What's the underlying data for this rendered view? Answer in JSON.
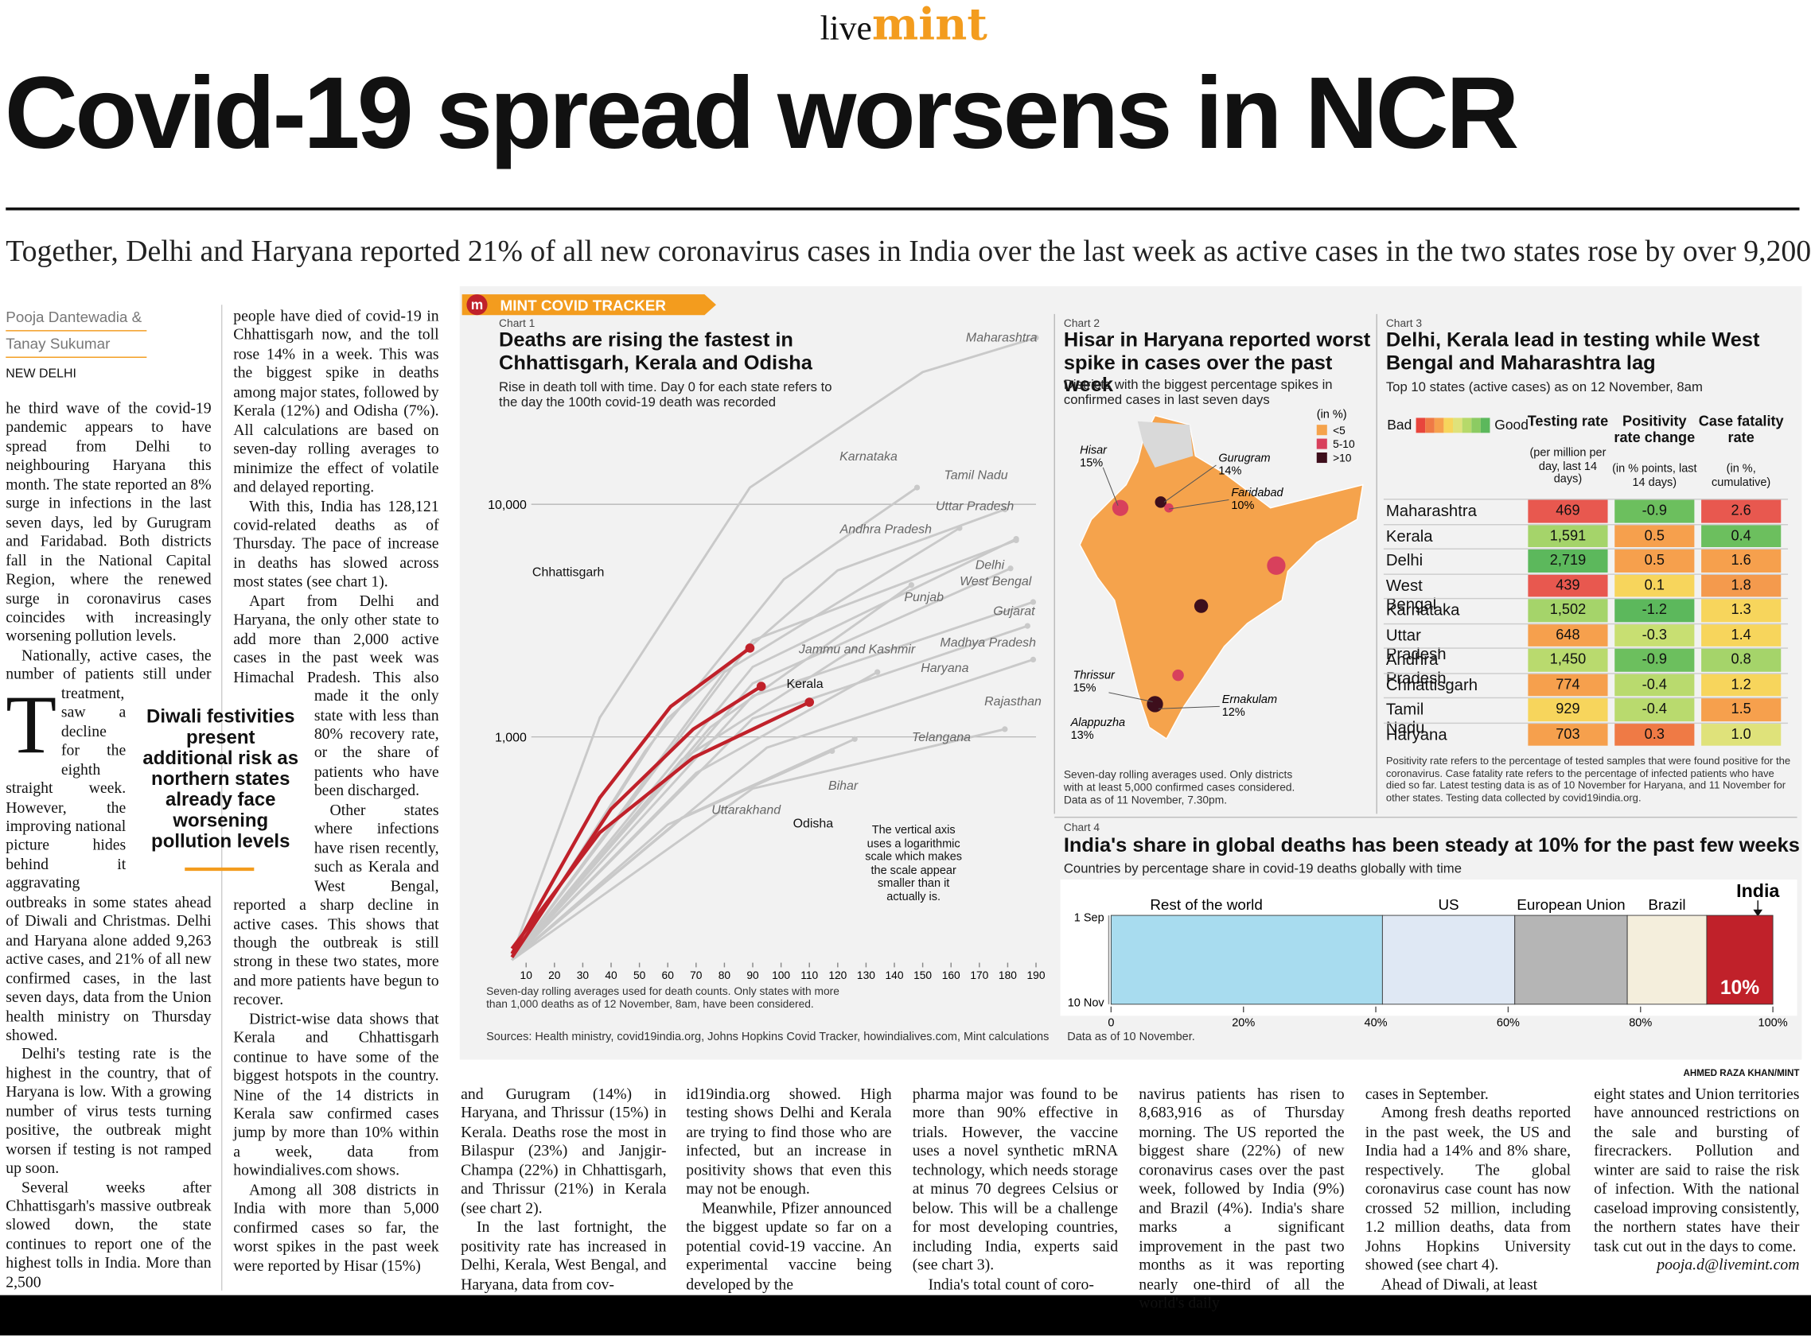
{
  "header": {
    "logo_live": "live",
    "logo_mint": "mint",
    "headline": "Covid-19 spread worsens in NCR",
    "standfirst": "Together, Delhi and Haryana reported 21% of all new coronavirus cases in India over the last week as active cases in the two states rose by over 9,200"
  },
  "byline": {
    "authors": [
      "Pooja Dantewadia &",
      "Tanay Sukumar"
    ],
    "dateline": "NEW DELHI"
  },
  "pull_quote": "Diwali festivities present additional risk as northern states already face worsening pollution levels",
  "article": {
    "drop_cap": "T",
    "columns": [
      [
        "he third wave of the covid-19 pandemic appears to have spread from Delhi to neighbouring Haryana this month. The state reported an 8% surge in infections in the last seven days, led by Gurugram and Faridabad. Both districts fall in the National Capital Region, where the renewed surge in coronavirus cases coincides with increasingly worsening pollution levels.",
        "Nationally, active cases, the number of patients still under treatment, saw a decline for the eighth straight week. However, the improving national picture hides behind it aggravating outbreaks in some states ahead of Diwali and Christmas. Delhi and Haryana alone added 9,263 active cases, and 21% of all new confirmed cases, in the last seven days, data from the Union health ministry on Thursday showed.",
        "Delhi's testing rate is the highest in the country, that of Haryana is low. With a growing number of virus tests turning positive, the outbreak might worsen if testing is not ramped up soon.",
        "Several weeks after Chhattisgarh's massive outbreak slowed down, the state continues to report one of the highest tolls in India. More than 2,500"
      ],
      [
        "people have died of covid-19 in Chhattisgarh now, and the toll rose 14% in a week. This was the biggest spike in deaths among major states, followed by Kerala (12%) and Odisha (7%). All calculations are based on seven-day rolling averages to minimize the effect of volatile and delayed reporting.",
        "With this, India has 128,121 covid-related deaths as of Thursday. The pace of increase in deaths has slowed across most states (see chart 1).",
        "Apart from Delhi and Haryana, the only other state to add more than 2,000 active cases in the past week was Himachal Pradesh. This also made it the only state with less than 80% recovery rate, or the share of patients who have been discharged.",
        "Other states where infections have risen recently, such as Kerala and West Bengal, reported a sharp decline in active cases. This shows that though the outbreak is still strong in these two states, more and more patients have begun to recover.",
        "District-wise data shows that Kerala and Chhattisgarh continue to have some of the biggest hotspots in the country. Nine of the 14 districts in Kerala saw confirmed cases jump by more than 10% within a week, data from howindialives.com shows.",
        "Among all 308 districts in India with more than 5,000 confirmed cases so far, the worst spikes in the past week were reported by Hisar (15%)"
      ],
      [
        "and Gurugram (14%) in Haryana, and Thrissur (15%) in Kerala. Deaths rose the most in Bilaspur (23%) and Janjgir-Champa (22%) in Chhattisgarh, and Thrissur (21%) in Kerala (see chart 2).",
        "In the last fortnight, the positivity rate has increased in Delhi, Kerala, West Bengal, and Haryana, data from cov-"
      ],
      [
        "id19india.org showed. High testing shows Delhi and Kerala are trying to find those who are infected, but an increase in positivity shows that even this may not be enough.",
        "Meanwhile, Pfizer announced the biggest update so far on a potential covid-19 vaccine. An experimental vaccine being developed by the"
      ],
      [
        "pharma major was found to be more than 90% effective in trials. However, the vaccine uses a novel synthetic mRNA technology, which needs storage at minus 70 degrees Celsius or below. This will be a challenge for most developing countries, including India, experts said (see chart 3).",
        "India's total count of coro-"
      ],
      [
        "navirus patients has risen to 8,683,916 as of Thursday morning. The US reported the biggest share (22%) of new coronavirus cases over the past week, followed by India (9%) and Brazil (4%). India's share marks a significant improvement in the past two months as it was reporting nearly one-third of all the world's daily"
      ],
      [
        "cases in September.",
        "Among fresh deaths reported in the past week, the US and India had a 14% and 8% share, respectively. The global coronavirus case count has now crossed 52 million, including 1.2 million deaths, data from Johns Hopkins University showed (see chart 4).",
        "Ahead of Diwali, at least"
      ],
      [
        "eight states and Union territories have announced restrictions on the sale and bursting of firecrackers. Pollution and winter are said to raise the risk of infection. With the national caseload improving consistently, the northern states have their task cut out in the days to come."
      ]
    ],
    "email": "pooja.d@livemint.com"
  },
  "tracker": {
    "icon": "m",
    "label": "MINT COVID TRACKER",
    "credit": "AHMED RAZA KHAN/MINT",
    "sources": "Sources: Health ministry, covid19india.org, Johns Hopkins Covid Tracker, howindialives.com, Mint calculations"
  },
  "chart1": {
    "kicker": "Chart 1",
    "type": "line",
    "title": "Deaths are rising the fastest in Chhattisgarh, Kerala and Odisha",
    "subtitle": "Rise in death toll with time. Day 0 for each state refers to the day the 100th covid-19 death was recorded",
    "xlim": [
      0,
      190
    ],
    "xticks": [
      10,
      20,
      30,
      40,
      50,
      60,
      70,
      80,
      90,
      100,
      110,
      120,
      130,
      140,
      150,
      160,
      170,
      180,
      190
    ],
    "ylim": [
      100,
      60000
    ],
    "log_scale": true,
    "yticks": [
      {
        "value": 1000,
        "label": "1,000"
      },
      {
        "value": 10000,
        "label": "10,000"
      }
    ],
    "grid": true,
    "note": "The vertical axis uses a logarithmic scale which makes the scale appear smaller than it actually is.",
    "footnote": "Seven-day rolling averages used for death counts. Only states with more than 1,000 deaths as of 12 November, 8am, have been considered.",
    "series": [
      {
        "name": "Maharashtra",
        "color": "#c9c9c9",
        "x": [
          5,
          36,
          89,
          150,
          190
        ],
        "values": [
          115,
          1210,
          11800,
          37000,
          52000
        ]
      },
      {
        "name": "Karnataka",
        "color": "#c9c9c9",
        "x": [
          5,
          52,
          101,
          148
        ],
        "values": [
          110,
          870,
          4760,
          11800
        ]
      },
      {
        "name": "Tamil Nadu",
        "color": "#c9c9c9",
        "x": [
          5,
          60,
          120,
          179
        ],
        "values": [
          110,
          1200,
          5200,
          9500
        ]
      },
      {
        "name": "Uttar Pradesh",
        "color": "#c9c9c9",
        "x": [
          5,
          90,
          183
        ],
        "values": [
          110,
          2000,
          7100
        ]
      },
      {
        "name": "Andhra Pradesh",
        "color": "#c9c9c9",
        "x": [
          5,
          80,
          163
        ],
        "values": [
          110,
          1900,
          7900
        ]
      },
      {
        "name": "Delhi",
        "color": "#c9c9c9",
        "x": [
          5,
          90,
          183
        ],
        "values": [
          110,
          2600,
          7000
        ]
      },
      {
        "name": "West Bengal",
        "color": "#c9c9c9",
        "x": [
          5,
          90,
          181
        ],
        "values": [
          110,
          1700,
          5300
        ]
      },
      {
        "name": "Punjab",
        "color": "#c9c9c9",
        "x": [
          5,
          75,
          146
        ],
        "values": [
          110,
          1100,
          4500
        ]
      },
      {
        "name": "Gujarat",
        "color": "#c9c9c9",
        "x": [
          5,
          90,
          189
        ],
        "values": [
          110,
          1500,
          3800
        ]
      },
      {
        "name": "Madhya Pradesh",
        "color": "#c9c9c9",
        "x": [
          5,
          90,
          187
        ],
        "values": [
          110,
          1200,
          3000
        ]
      },
      {
        "name": "Haryana",
        "color": "#c9c9c9",
        "x": [
          5,
          70,
          134
        ],
        "values": [
          110,
          700,
          1900
        ]
      },
      {
        "name": "Jammu and Kashmir",
        "color": "#c9c9c9",
        "x": [
          5,
          65,
          126
        ],
        "values": [
          110,
          800,
          2400
        ]
      },
      {
        "name": "Rajasthan",
        "color": "#c9c9c9",
        "x": [
          5,
          95,
          189
        ],
        "values": [
          110,
          900,
          2150
        ]
      },
      {
        "name": "Telangana",
        "color": "#c9c9c9",
        "x": [
          5,
          90,
          179
        ],
        "values": [
          110,
          600,
          1080
        ]
      },
      {
        "name": "Bihar",
        "color": "#c9c9c9",
        "x": [
          5,
          65,
          126
        ],
        "values": [
          110,
          450,
          980
        ]
      },
      {
        "name": "Uttarakhand",
        "color": "#c9c9c9",
        "x": [
          5,
          60,
          118
        ],
        "values": [
          110,
          420,
          870
        ]
      },
      {
        "name": "Chhattisgarh",
        "color": "#c0212a",
        "x": [
          5,
          36,
          61,
          89
        ],
        "values": [
          117,
          548,
          1350,
          2410
        ]
      },
      {
        "name": "Kerala",
        "color": "#c0212a",
        "x": [
          5,
          40,
          69,
          93
        ],
        "values": [
          113,
          490,
          1080,
          1650
        ]
      },
      {
        "name": "Odisha",
        "color": "#c0212a",
        "x": [
          5,
          36,
          69,
          110
        ],
        "values": [
          123,
          388,
          815,
          1410
        ]
      }
    ]
  },
  "chart2": {
    "kicker": "Chart 2",
    "title": "Hisar in Haryana reported worst spike in cases over the past week",
    "subtitle": "Districts with the biggest percentage spikes in confirmed cases in last seven days",
    "legend": {
      "title": "(in %)",
      "items": [
        {
          "label": "<5",
          "color": "#f5a34c"
        },
        {
          "label": "5-10",
          "color": "#d8405c"
        },
        {
          "label": ">10",
          "color": "#3e0f1c"
        }
      ]
    },
    "districts": [
      {
        "name": "Hisar",
        "label": "15%"
      },
      {
        "name": "Gurugram",
        "label": "14%"
      },
      {
        "name": "Faridabad",
        "label": "10%"
      },
      {
        "name": "Thrissur",
        "label": "15%"
      },
      {
        "name": "Alappuzha",
        "label": "13%"
      },
      {
        "name": "Ernakulam",
        "label": "12%"
      }
    ],
    "note": "Seven-day rolling averages used. Only districts with at least 5,000 confirmed cases considered. Data as of 11 November, 7.30pm."
  },
  "chart3": {
    "kicker": "Chart 3",
    "title": "Delhi, Kerala lead in testing while West Bengal and Maharashtra lag",
    "subtitle": "Top 10 states (active cases) as on 12 November, 8am",
    "scale": {
      "bad": "Bad",
      "good": "Good",
      "colors": [
        "#e8453c",
        "#ef7a45",
        "#f6a04d",
        "#f7d55c",
        "#dfe27a",
        "#b6d96a",
        "#8ccb62",
        "#5cb85c"
      ]
    },
    "columns": [
      {
        "title": "Testing rate",
        "unit": "(per million per day, last 14 days)"
      },
      {
        "title": "Positivity rate change",
        "unit": "(in % points, last 14 days)"
      },
      {
        "title": "Case fatality rate",
        "unit": "(in %, cumulative)"
      }
    ],
    "rows": [
      {
        "state": "Maharashtra",
        "cells": [
          "469",
          "-0.9",
          "2.6"
        ],
        "colors": [
          "#e8584f",
          "#6cbf5e",
          "#e8584f"
        ]
      },
      {
        "state": "Kerala",
        "cells": [
          "1,591",
          "0.5",
          "0.4"
        ],
        "colors": [
          "#a5d46a",
          "#f6a04d",
          "#6cbf5e"
        ]
      },
      {
        "state": "Delhi",
        "cells": [
          "2,719",
          "0.5",
          "1.6"
        ],
        "colors": [
          "#5cb85c",
          "#f6a04d",
          "#f6a04d"
        ]
      },
      {
        "state": "West Bengal",
        "cells": [
          "439",
          "0.1",
          "1.8"
        ],
        "colors": [
          "#e8584f",
          "#f7d55c",
          "#f49a4d"
        ]
      },
      {
        "state": "Karnataka",
        "cells": [
          "1,502",
          "-1.2",
          "1.3"
        ],
        "colors": [
          "#a5d46a",
          "#5cb85c",
          "#f7d55c"
        ]
      },
      {
        "state": "Uttar Pradesh",
        "cells": [
          "648",
          "-0.3",
          "1.4"
        ],
        "colors": [
          "#f6a04d",
          "#c8df72",
          "#f7d55c"
        ]
      },
      {
        "state": "Andhra Pradesh",
        "cells": [
          "1,450",
          "-0.9",
          "0.8"
        ],
        "colors": [
          "#b9da6e",
          "#6cbf5e",
          "#a5d46a"
        ]
      },
      {
        "state": "Chhattisgarh",
        "cells": [
          "774",
          "-0.4",
          "1.2"
        ],
        "colors": [
          "#f6a04d",
          "#b9da6e",
          "#f7d55c"
        ]
      },
      {
        "state": "Tamil Nadu",
        "cells": [
          "929",
          "-0.4",
          "1.5"
        ],
        "colors": [
          "#f7d55c",
          "#b9da6e",
          "#f6a04d"
        ]
      },
      {
        "state": "Haryana",
        "cells": [
          "703",
          "0.3",
          "1.0"
        ],
        "colors": [
          "#f6a04d",
          "#ef7a45",
          "#dfe27a"
        ]
      }
    ],
    "note": "Positivity rate refers to the percentage of tested samples that were found positive for the coronavirus. Case fatality rate refers to the percentage of infected patients who have died so far. Latest testing data is as of 10 November for Haryana, and 11 November for other states. Testing data collected by covid19india.org."
  },
  "chart4": {
    "kicker": "Chart 4",
    "type": "stacked-bar",
    "title": "India's share in global deaths has been steady at 10% for the past few weeks",
    "subtitle": "Countries by percentage share in covid-19 deaths globally with time",
    "dates": [
      "1 Sep",
      "10 Nov"
    ],
    "xlim": [
      0,
      100
    ],
    "xticks": [
      0,
      {
        "value": 20,
        "label": "20%"
      },
      {
        "value": 40,
        "label": "40%"
      },
      {
        "value": 60,
        "label": "60%"
      },
      {
        "value": 80,
        "label": "80%"
      },
      {
        "value": 100,
        "label": "100%"
      }
    ],
    "series": [
      {
        "name": "Rest of the world",
        "color": "#a8dcef",
        "value": 41
      },
      {
        "name": "US",
        "color": "#dfe8f4",
        "value": 20
      },
      {
        "name": "European Union",
        "color": "#b5b5b5",
        "value": 17
      },
      {
        "name": "Brazil",
        "color": "#f4eedc",
        "value": 12
      },
      {
        "name": "India",
        "color": "#c0212a",
        "value": 10,
        "value_label": "10%"
      }
    ],
    "note": "Data as of 10 November."
  }
}
